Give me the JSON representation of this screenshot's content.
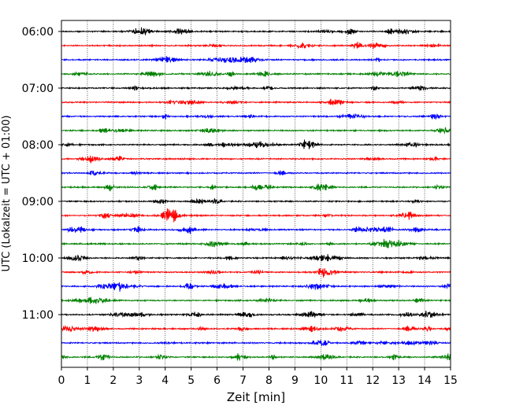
{
  "chart_data": {
    "type": "line",
    "title": "",
    "xlabel": "Zeit  [min]",
    "ylabel": "UTC (Lokalzeit = UTC + 01:00)",
    "xlim": [
      0,
      15
    ],
    "x_ticks": [
      0,
      1,
      2,
      3,
      4,
      5,
      6,
      7,
      8,
      9,
      10,
      11,
      12,
      13,
      14,
      15
    ],
    "x_tick_labels": [
      "0",
      "1",
      "2",
      "3",
      "4",
      "5",
      "6",
      "7",
      "8",
      "9",
      "10",
      "11",
      "12",
      "13",
      "14",
      "15"
    ],
    "y_tick_labels": [
      "06:00",
      "07:00",
      "08:00",
      "09:00",
      "10:00",
      "11:00"
    ],
    "grid": "vertical dotted",
    "trace_minutes": 15,
    "trace_start_times": [
      "06:00",
      "06:15",
      "06:30",
      "06:45",
      "07:00",
      "07:15",
      "07:30",
      "07:45",
      "08:00",
      "08:15",
      "08:30",
      "08:45",
      "09:00",
      "09:15",
      "09:30",
      "09:45",
      "10:00",
      "10:15",
      "10:30",
      "10:45",
      "11:00",
      "11:15",
      "11:30",
      "11:45"
    ],
    "trace_colors": [
      "#000000",
      "#ff0000",
      "#0000ff",
      "#008000"
    ]
  }
}
